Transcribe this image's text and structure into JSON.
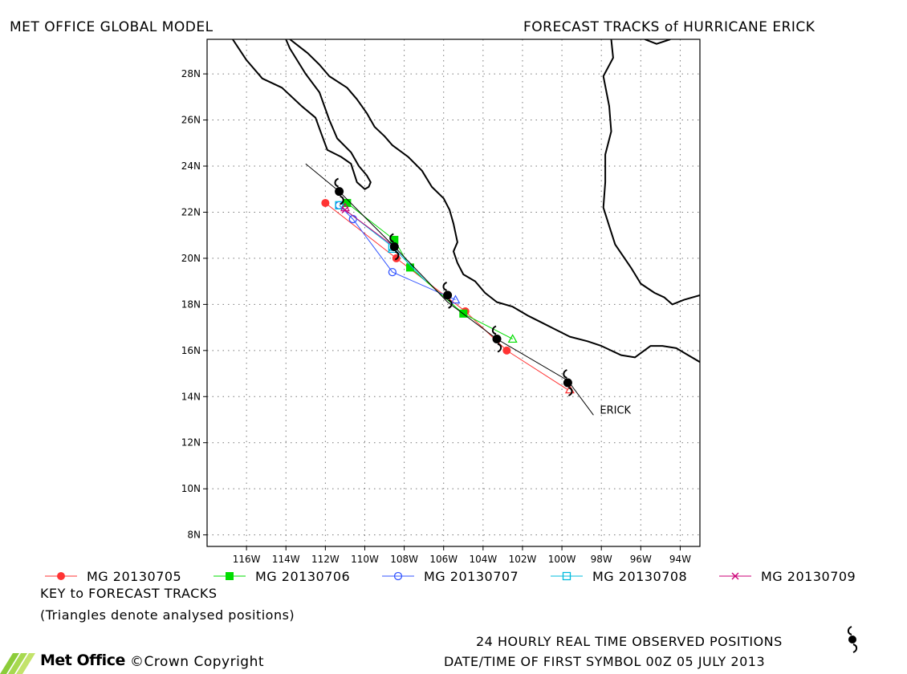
{
  "header": {
    "left_title": "MET OFFICE GLOBAL MODEL",
    "right_title": "FORECAST TRACKS of HURRICANE ERICK"
  },
  "map": {
    "lon_range": [
      -118,
      -93
    ],
    "lat_range": [
      7.5,
      29.5
    ],
    "lon_ticks": [
      -116,
      -114,
      -112,
      -110,
      -108,
      -106,
      -104,
      -102,
      -100,
      -98,
      -96,
      -94
    ],
    "lat_ticks": [
      8,
      10,
      12,
      14,
      16,
      18,
      20,
      22,
      24,
      26,
      28
    ],
    "lon_tick_labels": [
      "116W",
      "114W",
      "112W",
      "110W",
      "108W",
      "106W",
      "104W",
      "102W",
      "100W",
      "98W",
      "96W",
      "94W"
    ],
    "lat_tick_labels": [
      "8N",
      "10N",
      "12N",
      "14N",
      "16N",
      "18N",
      "20N",
      "22N",
      "24N",
      "26N",
      "28N"
    ],
    "grid": "dotted",
    "storm_label": "ERICK",
    "coastline": [
      [
        [
          -116.7,
          29.5
        ],
        [
          -116.0,
          28.6
        ],
        [
          -115.2,
          27.8
        ],
        [
          -114.2,
          27.4
        ],
        [
          -113.2,
          26.6
        ],
        [
          -112.5,
          26.1
        ],
        [
          -112.2,
          25.4
        ],
        [
          -111.9,
          24.7
        ],
        [
          -111.2,
          24.4
        ],
        [
          -110.7,
          24.1
        ],
        [
          -110.4,
          23.3
        ],
        [
          -110.0,
          23.0
        ],
        [
          -109.8,
          23.1
        ],
        [
          -109.7,
          23.3
        ],
        [
          -109.9,
          23.6
        ],
        [
          -110.3,
          24.0
        ],
        [
          -110.7,
          24.6
        ],
        [
          -111.4,
          25.2
        ],
        [
          -111.8,
          26.0
        ],
        [
          -112.3,
          27.2
        ],
        [
          -113.0,
          28.0
        ],
        [
          -113.8,
          29.1
        ],
        [
          -114.0,
          29.5
        ]
      ],
      [
        [
          -113.8,
          29.5
        ],
        [
          -112.9,
          28.9
        ],
        [
          -112.3,
          28.4
        ],
        [
          -111.8,
          27.9
        ],
        [
          -110.9,
          27.4
        ],
        [
          -110.4,
          26.9
        ],
        [
          -109.9,
          26.3
        ],
        [
          -109.5,
          25.7
        ],
        [
          -109.0,
          25.3
        ],
        [
          -108.6,
          24.9
        ],
        [
          -107.8,
          24.4
        ],
        [
          -107.1,
          23.8
        ],
        [
          -106.6,
          23.1
        ],
        [
          -106.0,
          22.6
        ],
        [
          -105.7,
          22.1
        ],
        [
          -105.5,
          21.5
        ],
        [
          -105.3,
          20.7
        ],
        [
          -105.5,
          20.3
        ],
        [
          -105.3,
          19.8
        ],
        [
          -105.0,
          19.3
        ],
        [
          -104.4,
          19.0
        ],
        [
          -103.9,
          18.5
        ],
        [
          -103.3,
          18.1
        ],
        [
          -102.5,
          17.9
        ],
        [
          -101.7,
          17.5
        ],
        [
          -101.0,
          17.2
        ],
        [
          -100.3,
          16.9
        ],
        [
          -99.6,
          16.6
        ],
        [
          -98.7,
          16.4
        ],
        [
          -98.0,
          16.2
        ],
        [
          -97.0,
          15.8
        ],
        [
          -96.3,
          15.7
        ],
        [
          -95.5,
          16.2
        ],
        [
          -94.9,
          16.2
        ],
        [
          -94.2,
          16.1
        ],
        [
          -93.6,
          15.8
        ],
        [
          -93.0,
          15.5
        ]
      ],
      [
        [
          -97.5,
          29.5
        ],
        [
          -97.4,
          28.7
        ],
        [
          -97.9,
          27.9
        ],
        [
          -97.6,
          26.6
        ],
        [
          -97.5,
          25.5
        ],
        [
          -97.8,
          24.5
        ],
        [
          -97.8,
          23.3
        ],
        [
          -97.9,
          22.2
        ],
        [
          -97.6,
          21.4
        ],
        [
          -97.3,
          20.6
        ],
        [
          -96.5,
          19.6
        ],
        [
          -96.0,
          18.9
        ],
        [
          -95.3,
          18.5
        ],
        [
          -94.8,
          18.3
        ],
        [
          -94.4,
          18.0
        ],
        [
          -93.8,
          18.2
        ],
        [
          -93.0,
          18.4
        ]
      ],
      [
        [
          -95.8,
          29.5
        ],
        [
          -95.2,
          29.3
        ],
        [
          -94.5,
          29.5
        ]
      ]
    ]
  },
  "tracks": [
    {
      "name": "MG 20130705",
      "color": "#ff3333",
      "marker": "filled-circle",
      "points": [
        [
          -99.7,
          14.3
        ],
        [
          -102.8,
          16.0
        ],
        [
          -104.9,
          17.7
        ],
        [
          -108.4,
          20.0
        ],
        [
          -112.0,
          22.4
        ]
      ]
    },
    {
      "name": "MG 20130706",
      "color": "#00dd00",
      "marker": "filled-square",
      "points": [
        [
          -102.5,
          16.5
        ],
        [
          -105.0,
          17.6
        ],
        [
          -107.7,
          19.6
        ],
        [
          -108.5,
          20.8
        ],
        [
          -110.9,
          22.4
        ]
      ]
    },
    {
      "name": "MG 20130707",
      "color": "#3355ff",
      "marker": "open-circle",
      "points": [
        [
          -105.4,
          18.2
        ],
        [
          -108.6,
          19.4
        ],
        [
          -110.6,
          21.7
        ],
        [
          -111.3,
          22.3
        ]
      ]
    },
    {
      "name": "MG 20130708",
      "color": "#00bbdd",
      "marker": "open-square",
      "points": [
        [
          -106.9,
          19.0
        ],
        [
          -108.6,
          20.5
        ],
        [
          -111.3,
          22.3
        ]
      ]
    },
    {
      "name": "MG 20130709",
      "color": "#cc0077",
      "marker": "cross",
      "points": [
        [
          -108.5,
          20.5
        ],
        [
          -111.0,
          22.1
        ]
      ]
    }
  ],
  "analysed_positions": [
    {
      "color": "#ff3333",
      "point": [
        -99.6,
        14.3
      ]
    },
    {
      "color": "#00dd00",
      "point": [
        -102.5,
        16.5
      ]
    },
    {
      "color": "#3355ff",
      "point": [
        -105.4,
        18.2
      ]
    },
    {
      "color": "#00bbdd",
      "point": [
        -108.6,
        20.4
      ]
    },
    {
      "color": "#cc0077",
      "point": [
        -111.0,
        22.2
      ]
    }
  ],
  "observed_track": [
    [
      -98.4,
      13.2
    ],
    [
      -99.7,
      14.7
    ],
    [
      -103.3,
      16.5
    ],
    [
      -105.8,
      18.1
    ],
    [
      -108.5,
      20.5
    ],
    [
      -111.3,
      22.9
    ],
    [
      -113.0,
      24.1
    ]
  ],
  "observed_positions": [
    [
      -99.7,
      14.6
    ],
    [
      -103.3,
      16.5
    ],
    [
      -105.8,
      18.4
    ],
    [
      -108.5,
      20.5
    ],
    [
      -111.3,
      22.9
    ]
  ],
  "legend": {
    "key_title": "KEY to FORECAST TRACKS",
    "triangle_note": "(Triangles denote analysed positions)"
  },
  "footer": {
    "observed_note": "24 HOURLY REAL TIME OBSERVED POSITIONS",
    "logo_text": "Met Office",
    "copyright": "©Crown Copyright",
    "datetime": "DATE/TIME OF FIRST SYMBOL 00Z 05 JULY 2013"
  }
}
